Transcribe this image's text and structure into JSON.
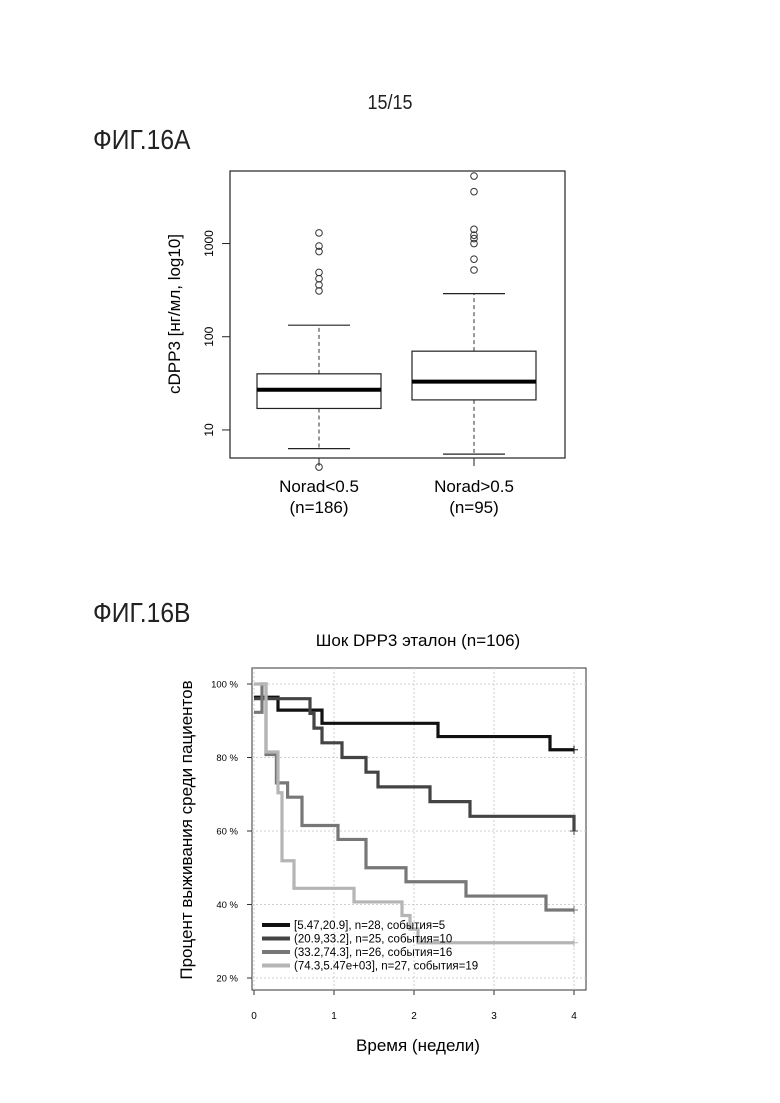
{
  "page_number": "15/15",
  "figures": [
    {
      "label": "ФИГ.16А"
    },
    {
      "label": "ФИГ.16В"
    }
  ],
  "chart_data": [
    {
      "type": "boxplot",
      "title": "",
      "ylabel": "cDPP3 [нг/мл, log10]",
      "xlabel": "",
      "yscale": "log10",
      "ylim": [
        5,
        6000
      ],
      "y_ticks": [
        {
          "value": 10,
          "label": "10"
        },
        {
          "value": 100,
          "label": "100"
        },
        {
          "value": 1000,
          "label": "1000"
        }
      ],
      "groups": [
        {
          "name": "Norad<0.5",
          "n_label": "(n=186)",
          "whisker_low": 6.3,
          "q1": 17,
          "median": 27,
          "q3": 40,
          "whisker_high": 133,
          "outliers": [
            4,
            310,
            360,
            420,
            490,
            820,
            940,
            1300
          ]
        },
        {
          "name": "Norad>0.5",
          "n_label": "(n=95)",
          "whisker_low": 5.5,
          "q1": 21,
          "median": 33,
          "q3": 70,
          "whisker_high": 290,
          "outliers": [
            520,
            680,
            1000,
            1130,
            1230,
            1420,
            3600,
            5300
          ]
        }
      ]
    },
    {
      "type": "line",
      "subtype": "kaplan-meier",
      "title": "Шок DPP3 эталон  (n=106)",
      "xlabel": "Время (недели)",
      "ylabel": "Процент выживания среди пациентов",
      "xlim": [
        0,
        4
      ],
      "ylim": [
        20,
        100
      ],
      "x_ticks": [
        "0",
        "1",
        "2",
        "3",
        "4"
      ],
      "x_tick_values": [
        0,
        1,
        2,
        3,
        4
      ],
      "y_ticks": [
        "20 %",
        "40 %",
        "60 %",
        "80 %",
        "100 %"
      ],
      "y_tick_values": [
        20,
        40,
        60,
        80,
        100
      ],
      "grid": true,
      "legend_position": "bottom-left",
      "series": [
        {
          "name": "[5.47,20.9], n=28, события=5",
          "color": "#111111",
          "x": [
            0,
            0.3,
            0.85,
            2.3,
            3.7,
            4.0
          ],
          "y": [
            96.4,
            92.9,
            89.3,
            85.7,
            82.1,
            82.1
          ]
        },
        {
          "name": "(20.9,33.2], n=25, события=10",
          "color": "#444444",
          "x": [
            0,
            0.7,
            0.75,
            0.85,
            1.1,
            1.4,
            1.55,
            2.2,
            2.7,
            4.0
          ],
          "y": [
            96,
            92,
            88,
            84,
            80,
            76,
            72,
            68,
            64,
            60
          ]
        },
        {
          "name": "(33.2,74.3], n=26, события=16",
          "color": "#777777",
          "x": [
            0,
            0.1,
            0.15,
            0.28,
            0.42,
            0.6,
            1.05,
            1.4,
            1.9,
            2.15,
            2.65,
            3.65,
            4.0
          ],
          "y": [
            92.3,
            100,
            80.8,
            73.1,
            69.2,
            61.5,
            57.7,
            50,
            46.2,
            46.2,
            42.3,
            38.5,
            38.5
          ]
        },
        {
          "name": "(74.3,5.47e+03], n=27, события=19",
          "color": "#b5b5b5",
          "x": [
            0,
            0.15,
            0.25,
            0.3,
            0.35,
            0.5,
            1.25,
            1.55,
            1.85,
            1.95,
            2.05,
            4.0
          ],
          "y": [
            100,
            81.5,
            81.5,
            70.4,
            51.9,
            44.4,
            40.7,
            40.7,
            37,
            33.3,
            29.6,
            29.6
          ]
        }
      ]
    }
  ]
}
